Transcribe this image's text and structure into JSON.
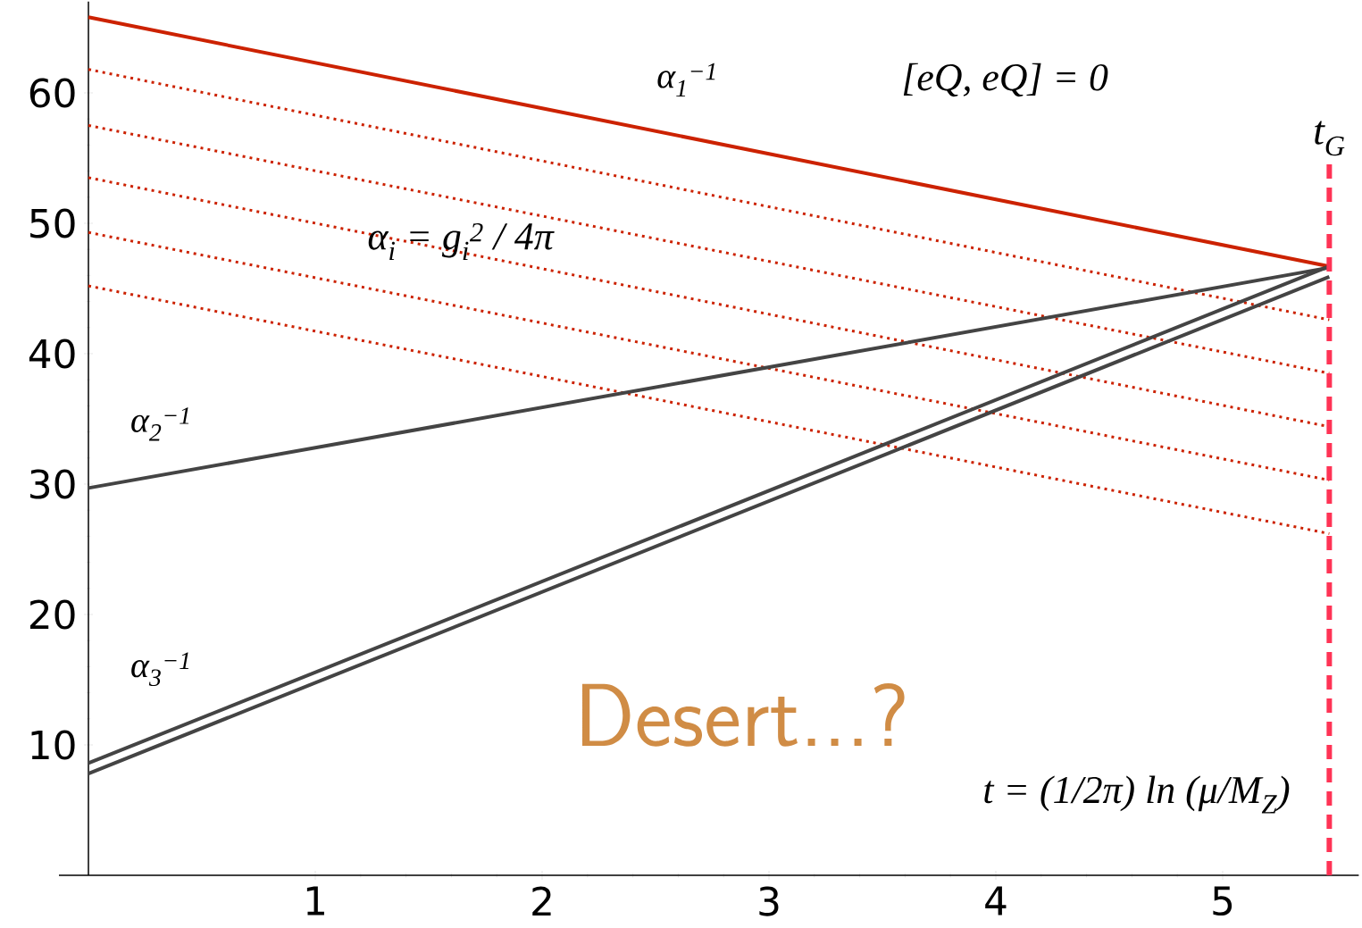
{
  "chart_data": {
    "type": "line",
    "x": [
      0,
      5.47
    ],
    "xlim": [
      -0.13,
      5.6
    ],
    "ylim": [
      0,
      67
    ],
    "xticks": [
      1,
      2,
      3,
      4,
      5
    ],
    "yticks": [
      10,
      20,
      30,
      40,
      50,
      60
    ],
    "grid": false,
    "marker": "none",
    "series": [
      {
        "name": "α$_{1}$$^{−1}$",
        "color": "#cc2200",
        "line_style": "solid",
        "values": [
          65.8,
          46.7
        ]
      },
      {
        "color": "#cc2200",
        "line_style": "dotted",
        "values": [
          61.8,
          42.6
        ]
      },
      {
        "color": "#cc2200",
        "line_style": "dotted",
        "values": [
          57.5,
          38.5
        ]
      },
      {
        "color": "#cc2200",
        "line_style": "dotted",
        "values": [
          53.5,
          34.4
        ]
      },
      {
        "color": "#cc2200",
        "line_style": "dotted",
        "values": [
          49.3,
          30.3
        ]
      },
      {
        "color": "#cc2200",
        "line_style": "dotted",
        "values": [
          45.2,
          26.2
        ]
      },
      {
        "name": "α$_{2}$$^{−1}$",
        "color": "#444444",
        "line_style": "solid",
        "values": [
          29.7,
          46.6
        ]
      },
      {
        "name": "α$_{3}$$^{−1}$",
        "color": "#444444",
        "line_style": "solid",
        "values": [
          8.6,
          46.7
        ]
      },
      {
        "color": "#444444",
        "line_style": "solid",
        "values": [
          7.8,
          45.9
        ]
      }
    ],
    "ref_lines": [
      {
        "axis": "x",
        "value": 5.47,
        "label": "t$_{G}$",
        "color": "#ff3355",
        "line_style": "dashed"
      }
    ],
    "annotations": [
      "[eQ, eQ] = 0",
      "α$_{i}$ = g$_{i}$$^{2}$ / 4π",
      "Desert...?",
      "t = (1/2π) ln (μ/M$_{Z}$)"
    ]
  }
}
